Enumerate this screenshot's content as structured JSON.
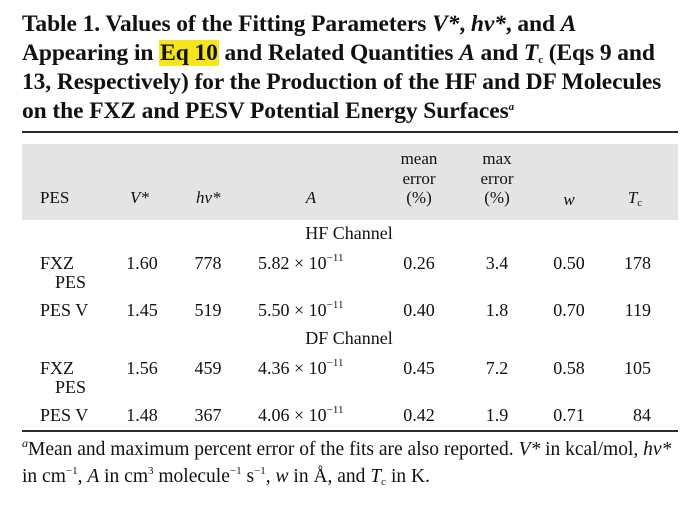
{
  "caption": {
    "part1": "Table 1. Values of the Fitting Parameters ",
    "v_sym": "V*",
    "sep1": ", ",
    "hv_sym": "hν*",
    "part2": ", and ",
    "a_sym": "A",
    "part3": " Appearing in ",
    "eq_ref": "Eq 10",
    "part4": " and Related Quantities ",
    "a_sym2": "A",
    "part5": " and ",
    "t_sym": "T",
    "t_sub": "c",
    "part6": " (Eqs 9 and 13, Respectively) for the Production of the HF and DF Molecules on the FXZ and PESV Potential Energy Surfaces",
    "note_mark": "a"
  },
  "headers": {
    "pes": "PES",
    "v": "V*",
    "hv": "hν*",
    "a": "A",
    "mean1": "mean",
    "mean2": "error",
    "mean3": "(%)",
    "max1": "max",
    "max2": "error",
    "max3": "(%)",
    "w": "w",
    "t": "T",
    "t_sub": "c"
  },
  "sections": [
    {
      "title": "HF Channel",
      "rows": [
        {
          "pes": "FXZ",
          "pes2": "PES",
          "v": "1.60",
          "hv": "778",
          "a_base": "5.82 × 10",
          "a_exp": "−11",
          "mean": "0.26",
          "max": "3.4",
          "w": "0.50",
          "t": "178"
        },
        {
          "pes": "PES V",
          "pes2": "",
          "v": "1.45",
          "hv": "519",
          "a_base": "5.50 × 10",
          "a_exp": "−11",
          "mean": "0.40",
          "max": "1.8",
          "w": "0.70",
          "t": "119"
        }
      ]
    },
    {
      "title": "DF Channel",
      "rows": [
        {
          "pes": "FXZ",
          "pes2": "PES",
          "v": "1.56",
          "hv": "459",
          "a_base": "4.36 × 10",
          "a_exp": "−11",
          "mean": "0.45",
          "max": "7.2",
          "w": "0.58",
          "t": "105"
        },
        {
          "pes": "PES V",
          "pes2": "",
          "v": "1.48",
          "hv": "367",
          "a_base": "4.06 × 10",
          "a_exp": "−11",
          "mean": "0.42",
          "max": "1.9",
          "w": "0.71",
          "t": "84"
        }
      ]
    }
  ],
  "footnote": {
    "mark": "a",
    "t1": "Mean and maximum percent error of the fits are also reported. ",
    "v_sym": "V*",
    "t2": " in kcal/mol, ",
    "hv_sym": "hν*",
    "t3": " in cm",
    "exp1": "−1",
    "t4": ", ",
    "a_sym": "A",
    "t5": " in cm",
    "exp3": "3",
    "t6": " molecule",
    "exp2": "−1",
    "t7": " s",
    "exp4": "−1",
    "t8": ", ",
    "w_sym": "w",
    "t9": " in Å, and ",
    "t_sym": "T",
    "t_sub": "c",
    "t10": " in K."
  }
}
